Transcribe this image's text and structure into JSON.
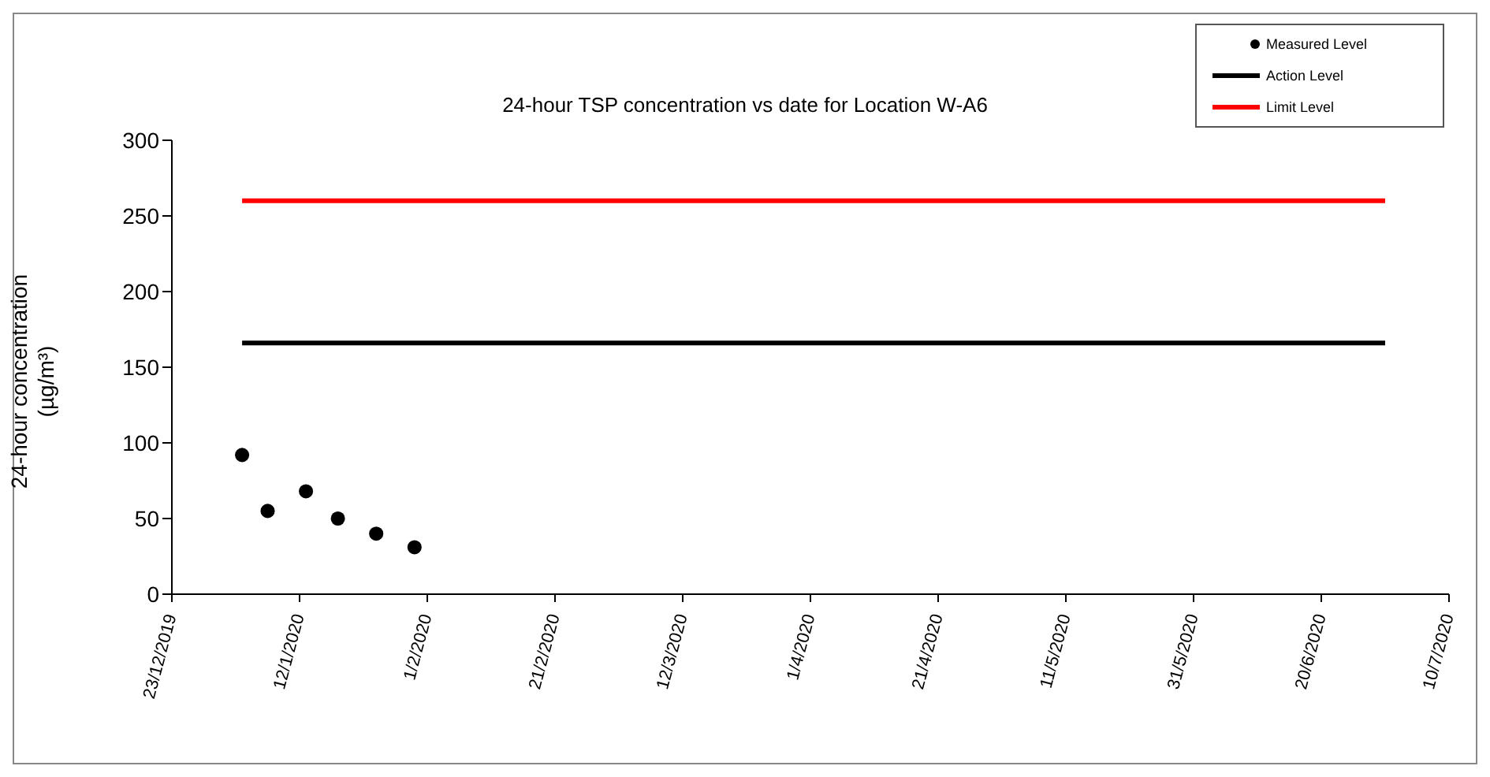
{
  "chart_data": {
    "type": "scatter",
    "title": "24-hour TSP concentration vs date for Location W-A6",
    "ylabel": "24-hour concentration (µg/m³)",
    "series": [
      {
        "name": "Measured Level",
        "color": "#000000",
        "marker": "circle",
        "x": [
          "2020-01-03",
          "2020-01-07",
          "2020-01-13",
          "2020-01-18",
          "2020-01-24",
          "2020-01-30"
        ],
        "values": [
          92,
          55,
          68,
          50,
          40,
          31
        ]
      },
      {
        "name": "Action Level",
        "type": "line",
        "color": "#000000",
        "marker": "none",
        "x": [
          "2020-01-03",
          "2020-06-30"
        ],
        "values": [
          166,
          166
        ]
      },
      {
        "name": "Limit Level",
        "type": "line",
        "color": "#ff0000",
        "marker": "none",
        "x": [
          "2020-01-03",
          "2020-06-30"
        ],
        "values": [
          260,
          260
        ]
      }
    ],
    "xlim": [
      "2019-12-23",
      "2020-07-10"
    ],
    "xticks": [
      {
        "value": "2019-12-23",
        "label": "23/12/2019"
      },
      {
        "value": "2020-01-12",
        "label": "12/1/2020"
      },
      {
        "value": "2020-02-01",
        "label": "1/2/2020"
      },
      {
        "value": "2020-02-21",
        "label": "21/2/2020"
      },
      {
        "value": "2020-03-12",
        "label": "12/3/2020"
      },
      {
        "value": "2020-04-01",
        "label": "1/4/2020"
      },
      {
        "value": "2020-04-21",
        "label": "21/4/2020"
      },
      {
        "value": "2020-05-11",
        "label": "11/5/2020"
      },
      {
        "value": "2020-05-31",
        "label": "31/5/2020"
      },
      {
        "value": "2020-06-20",
        "label": "20/6/2020"
      },
      {
        "value": "2020-07-10",
        "label": "10/7/2020"
      }
    ],
    "ylim": [
      0,
      300
    ],
    "yticks": [
      0,
      50,
      100,
      150,
      200,
      250,
      300
    ],
    "grid": false,
    "legend": "top right",
    "line_style": "solid"
  }
}
